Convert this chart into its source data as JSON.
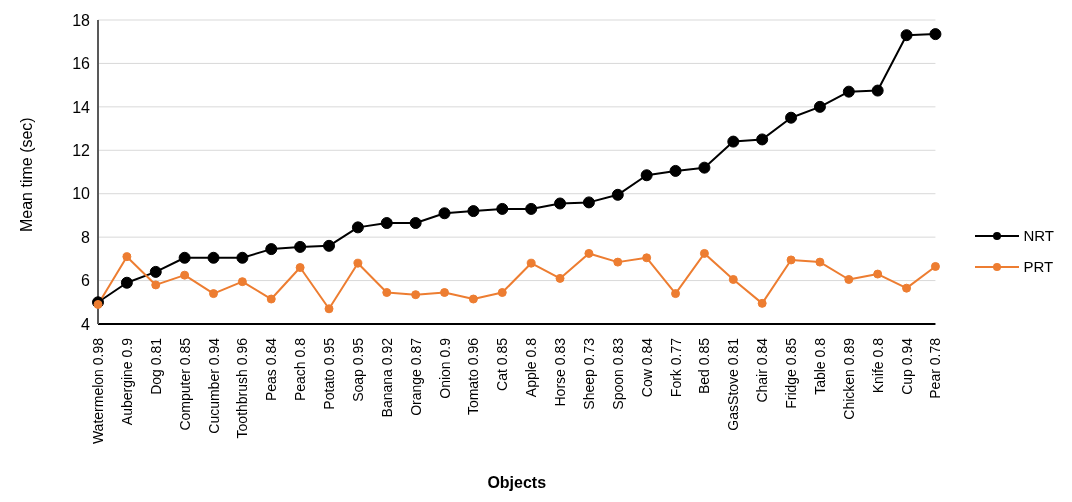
{
  "chart_data": {
    "type": "line",
    "xlabel": "Objects",
    "ylabel": "Mean time (sec)",
    "categories": [
      "Watermelon 0.98",
      "Aubergine 0.9",
      "Dog 0.81",
      "Computer 0.85",
      "Cucumber 0.94",
      "Toothbrush 0.96",
      "Peas 0.84",
      "Peach 0.8",
      "Potato 0.95",
      "Soap 0.95",
      "Banana 0.92",
      "Orange 0.87",
      "Onion 0.9",
      "Tomato 0.96",
      "Cat 0.85",
      "Apple 0.8",
      "Horse 0.83",
      "Sheep 0.73",
      "Spoon 0.83",
      "Cow 0.84",
      "Fork 0.77",
      "Bed 0.85",
      "GasStove 0.81",
      "Chair 0.84",
      "Fridge 0.85",
      "Table 0.8",
      "Chicken 0.89",
      "Knife 0.8",
      "Cup 0.94",
      "Pear 0.78"
    ],
    "series": [
      {
        "name": "NRT",
        "color": "#000000",
        "values": [
          5.0,
          5.9,
          6.4,
          7.05,
          7.05,
          7.05,
          7.45,
          7.55,
          7.6,
          8.45,
          8.65,
          8.65,
          9.1,
          9.2,
          9.3,
          9.3,
          9.55,
          9.6,
          9.95,
          10.85,
          11.05,
          11.2,
          12.4,
          12.5,
          13.5,
          14.0,
          14.7,
          14.75,
          17.3,
          17.35
        ]
      },
      {
        "name": "PRT",
        "color": "#ed7d31",
        "values": [
          4.9,
          7.1,
          5.8,
          6.25,
          5.4,
          5.95,
          5.15,
          6.6,
          4.7,
          6.8,
          5.45,
          5.35,
          5.45,
          5.15,
          5.45,
          6.8,
          6.1,
          7.25,
          6.85,
          7.05,
          5.4,
          7.25,
          6.05,
          4.95,
          6.95,
          6.85,
          6.05,
          6.3,
          5.65,
          6.65
        ]
      }
    ],
    "ylim": [
      4,
      18
    ],
    "yticks": [
      4,
      6,
      8,
      10,
      12,
      14,
      16,
      18
    ],
    "grid": "y",
    "legend": "right",
    "marker": "circle",
    "line_style": "solid"
  }
}
